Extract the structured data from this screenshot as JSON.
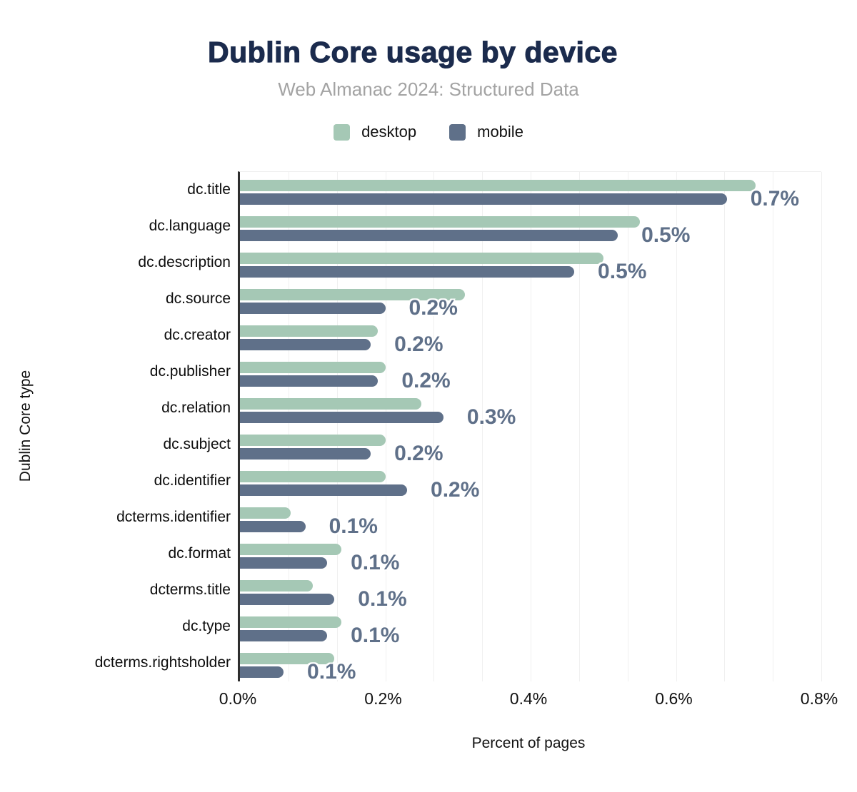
{
  "chart_data": {
    "type": "bar",
    "orientation": "horizontal",
    "title": "Dublin Core usage by device",
    "subtitle": "Web Almanac 2024: Structured Data",
    "xlabel": "Percent of pages",
    "ylabel": "Dublin Core type",
    "xlim": [
      0,
      0.8
    ],
    "x_ticks": [
      "0.0%",
      "0.2%",
      "0.4%",
      "0.6%",
      "0.8%"
    ],
    "grid": "minor-vertical",
    "legend_position": "top-center",
    "legend": [
      "desktop",
      "mobile"
    ],
    "categories": [
      "dc.title",
      "dc.language",
      "dc.description",
      "dc.source",
      "dc.creator",
      "dc.publisher",
      "dc.relation",
      "dc.subject",
      "dc.identifier",
      "dcterms.identifier",
      "dc.format",
      "dcterms.title",
      "dc.type",
      "dcterms.rightsholder"
    ],
    "series": [
      {
        "name": "desktop",
        "values": [
          0.71,
          0.55,
          0.5,
          0.31,
          0.19,
          0.2,
          0.25,
          0.2,
          0.2,
          0.07,
          0.14,
          0.1,
          0.14,
          0.13
        ]
      },
      {
        "name": "mobile",
        "values": [
          0.67,
          0.52,
          0.46,
          0.2,
          0.18,
          0.19,
          0.28,
          0.18,
          0.23,
          0.09,
          0.12,
          0.13,
          0.12,
          0.06
        ]
      }
    ],
    "bar_labels": [
      "0.7%",
      "0.5%",
      "0.5%",
      "0.2%",
      "0.2%",
      "0.2%",
      "0.3%",
      "0.2%",
      "0.2%",
      "0.1%",
      "0.1%",
      "0.1%",
      "0.1%",
      "0.1%"
    ],
    "colors": {
      "desktop": "#a5c8b5",
      "mobile": "#5f7089",
      "title": "#1b2b4d",
      "subtitle": "#a3a3a3",
      "value_label": "#5f7089",
      "axis_line": "#2e2e2e",
      "gridline": "#f0f0f0",
      "background": "#ffffff"
    }
  }
}
